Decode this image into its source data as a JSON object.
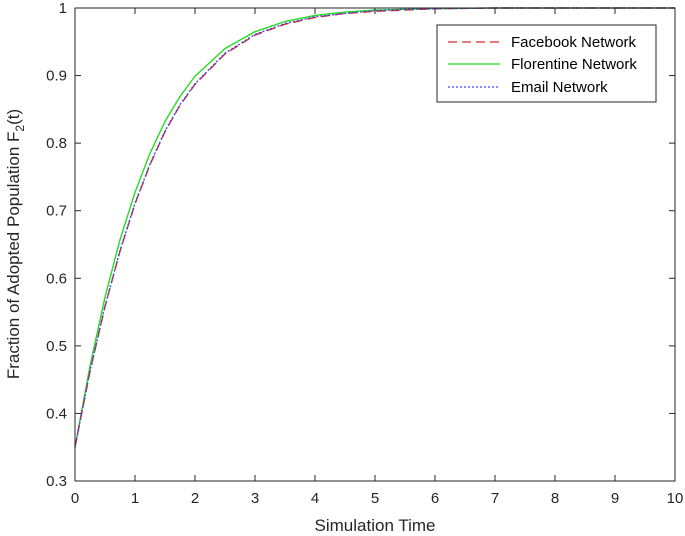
{
  "chart_data": {
    "type": "line",
    "title": "",
    "xlabel": "Simulation Time",
    "ylabel": "Fraction of Adopted Population F",
    "ylabel_subscript": "2",
    "ylabel_suffix": "(t)",
    "xlim": [
      0,
      10
    ],
    "ylim": [
      0.3,
      1
    ],
    "xticks": [
      "0",
      "1",
      "2",
      "3",
      "4",
      "5",
      "6",
      "7",
      "8",
      "9",
      "10"
    ],
    "yticks": [
      "0.3",
      "0.4",
      "0.5",
      "0.6",
      "0.7",
      "0.8",
      "0.9",
      "1"
    ],
    "grid": false,
    "legend_position": "top-right",
    "x": [
      0,
      0.25,
      0.5,
      0.75,
      1,
      1.25,
      1.5,
      1.75,
      2,
      2.5,
      3,
      3.5,
      4,
      4.5,
      5,
      5.5,
      6,
      7,
      8,
      9,
      10
    ],
    "series": [
      {
        "name": "Facebook Network",
        "color": "#d62728",
        "style": "dashed",
        "values": [
          0.35,
          0.462,
          0.558,
          0.64,
          0.71,
          0.768,
          0.817,
          0.856,
          0.887,
          0.932,
          0.96,
          0.976,
          0.986,
          0.992,
          0.995,
          0.997,
          0.999,
          1.0,
          1.0,
          1.0,
          1.0
        ]
      },
      {
        "name": "Florentine Network",
        "color": "#22dd22",
        "style": "solid",
        "values": [
          0.35,
          0.47,
          0.572,
          0.657,
          0.727,
          0.785,
          0.832,
          0.869,
          0.899,
          0.94,
          0.965,
          0.98,
          0.989,
          0.994,
          0.997,
          0.998,
          0.999,
          1.0,
          1.0,
          1.0,
          1.0
        ]
      },
      {
        "name": "Email Network",
        "color": "#4444ee",
        "style": "dotted",
        "values": [
          0.35,
          0.463,
          0.559,
          0.641,
          0.711,
          0.769,
          0.818,
          0.857,
          0.888,
          0.933,
          0.961,
          0.977,
          0.987,
          0.992,
          0.996,
          0.998,
          0.999,
          1.0,
          1.0,
          1.0,
          1.0
        ]
      }
    ]
  }
}
